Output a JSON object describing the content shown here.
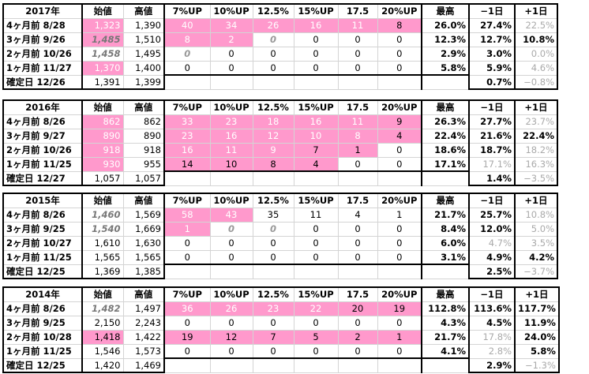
{
  "headers": [
    "始値",
    "高値",
    "7%UP",
    "10%UP",
    "12.5%",
    "15%UP",
    "17.5",
    "20%UP",
    "最高",
    "−1日",
    "+1日"
  ],
  "blocks": [
    {
      "year": "2017年",
      "rows": [
        {
          "label": "4ヶ月前  8/28",
          "open": "1,323",
          "high": "1,390",
          "c7": "40",
          "c10": "34",
          "c125": "26",
          "c15": "16",
          "c175": "11",
          "c20": "8",
          "max": "26.0%",
          "m1": "27.4%",
          "p1": "22.5%"
        },
        {
          "label": "3ヶ月前  9/26",
          "open": "1,485",
          "high": "1,510",
          "c7": "8",
          "c10": "2",
          "c125": "0",
          "c15": "0",
          "c175": "0",
          "c20": "0",
          "max": "12.3%",
          "m1": "12.7%",
          "p1": "10.8%"
        },
        {
          "label": "2ヶ月前  10/26",
          "open": "1,458",
          "high": "1,495",
          "c7": "0",
          "c10": "0",
          "c125": "0",
          "c15": "0",
          "c175": "0",
          "c20": "0",
          "max": "2.9%",
          "m1": "3.0%",
          "p1": "0.0%"
        },
        {
          "label": "1ヶ月前  11/27",
          "open": "1,370",
          "high": "1,400",
          "c7": "0",
          "c10": "0",
          "c125": "0",
          "c15": "0",
          "c175": "0",
          "c20": "0",
          "max": "5.8%",
          "m1": "5.9%",
          "p1": "4.6%"
        },
        {
          "label": "確定日  12/26",
          "open": "1,391",
          "high": "1,399",
          "c7": "",
          "c10": "",
          "c125": "",
          "c15": "",
          "c175": "",
          "c20": "",
          "max": "",
          "m1": "0.7%",
          "p1": "−0.8%"
        }
      ]
    },
    {
      "year": "2016年",
      "rows": [
        {
          "label": "4ヶ月前  8/26",
          "open": "862",
          "high": "862",
          "c7": "33",
          "c10": "23",
          "c125": "18",
          "c15": "16",
          "c175": "11",
          "c20": "9",
          "max": "26.3%",
          "m1": "27.7%",
          "p1": "23.7%"
        },
        {
          "label": "3ヶ月前  9/27",
          "open": "890",
          "high": "890",
          "c7": "23",
          "c10": "16",
          "c125": "12",
          "c15": "10",
          "c175": "8",
          "c20": "4",
          "max": "22.4%",
          "m1": "21.6%",
          "p1": "22.4%"
        },
        {
          "label": "2ヶ月前  10/26",
          "open": "918",
          "high": "918",
          "c7": "16",
          "c10": "11",
          "c125": "9",
          "c15": "7",
          "c175": "1",
          "c20": "0",
          "max": "18.6%",
          "m1": "18.7%",
          "p1": "18.2%"
        },
        {
          "label": "1ヶ月前  11/25",
          "open": "930",
          "high": "955",
          "c7": "14",
          "c10": "10",
          "c125": "8",
          "c15": "4",
          "c175": "0",
          "c20": "0",
          "max": "17.1%",
          "m1": "17.1%",
          "p1": "16.3%"
        },
        {
          "label": "確定日  12/27",
          "open": "1,057",
          "high": "1,057",
          "c7": "",
          "c10": "",
          "c125": "",
          "c15": "",
          "c175": "",
          "c20": "",
          "max": "",
          "m1": "1.4%",
          "p1": "−3.5%"
        }
      ]
    },
    {
      "year": "2015年",
      "rows": [
        {
          "label": "4ヶ月前  8/26",
          "open": "1,460",
          "high": "1,569",
          "c7": "58",
          "c10": "43",
          "c125": "35",
          "c15": "11",
          "c175": "4",
          "c20": "1",
          "max": "21.7%",
          "m1": "25.7%",
          "p1": "10.8%"
        },
        {
          "label": "3ヶ月前  9/25",
          "open": "1,540",
          "high": "1,669",
          "c7": "1",
          "c10": "0",
          "c125": "0",
          "c15": "0",
          "c175": "0",
          "c20": "0",
          "max": "8.4%",
          "m1": "12.0%",
          "p1": "5.0%"
        },
        {
          "label": "2ヶ月前  10/27",
          "open": "1,610",
          "high": "1,630",
          "c7": "0",
          "c10": "0",
          "c125": "0",
          "c15": "0",
          "c175": "0",
          "c20": "0",
          "max": "6.0%",
          "m1": "4.7%",
          "p1": "3.5%"
        },
        {
          "label": "1ヶ月前  11/25",
          "open": "1,565",
          "high": "1,565",
          "c7": "0",
          "c10": "0",
          "c125": "0",
          "c15": "0",
          "c175": "0",
          "c20": "0",
          "max": "3.1%",
          "m1": "4.9%",
          "p1": "4.2%"
        },
        {
          "label": "確定日  12/25",
          "open": "1,369",
          "high": "1,385",
          "c7": "",
          "c10": "",
          "c125": "",
          "c15": "",
          "c175": "",
          "c20": "",
          "max": "",
          "m1": "2.5%",
          "p1": "−3.7%"
        }
      ]
    },
    {
      "year": "2014年",
      "rows": [
        {
          "label": "4ヶ月前  8/26",
          "open": "1,482",
          "high": "1,497",
          "c7": "36",
          "c10": "26",
          "c125": "23",
          "c15": "22",
          "c175": "20",
          "c20": "19",
          "max": "112.8%",
          "m1": "113.6%",
          "p1": "117.7%"
        },
        {
          "label": "3ヶ月前  9/25",
          "open": "2,150",
          "high": "2,243",
          "c7": "0",
          "c10": "0",
          "c125": "0",
          "c15": "0",
          "c175": "0",
          "c20": "0",
          "max": "4.3%",
          "m1": "4.5%",
          "p1": "11.9%"
        },
        {
          "label": "2ヶ月前  10/28",
          "open": "1,418",
          "high": "1,422",
          "c7": "19",
          "c10": "12",
          "c125": "7",
          "c15": "5",
          "c175": "2",
          "c20": "1",
          "max": "21.7%",
          "m1": "17.8%",
          "p1": "24.0%"
        },
        {
          "label": "1ヶ月前  11/25",
          "open": "1,546",
          "high": "1,573",
          "c7": "0",
          "c10": "0",
          "c125": "0",
          "c15": "0",
          "c175": "0",
          "c20": "0",
          "max": "4.1%",
          "m1": "2.8%",
          "p1": "5.8%"
        },
        {
          "label": "確定日  12/25",
          "open": "1,420",
          "high": "1,469",
          "c7": "",
          "c10": "",
          "c125": "",
          "c15": "",
          "c175": "",
          "c20": "",
          "max": "",
          "m1": "2.9%",
          "p1": "−1.3%"
        }
      ]
    }
  ],
  "highlight_color": "#ff99cc"
}
